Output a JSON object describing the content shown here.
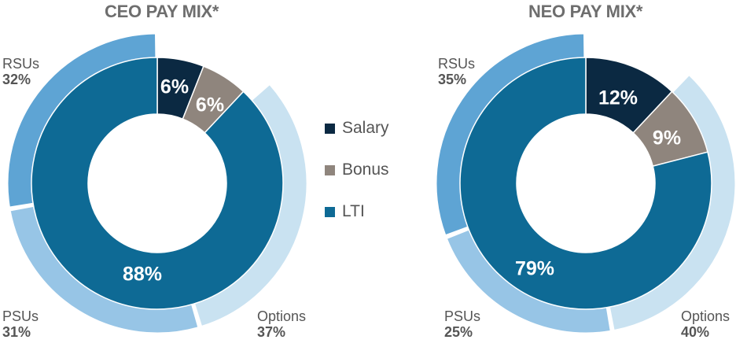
{
  "chart_data": [
    {
      "type": "pie",
      "title": "CEO PAY MIX*",
      "inner": [
        {
          "name": "Salary",
          "value": 6,
          "label": "6%"
        },
        {
          "name": "Bonus",
          "value": 6,
          "label": "6%"
        },
        {
          "name": "LTI",
          "value": 88,
          "label": "88%"
        }
      ],
      "outer": [
        {
          "name": "Options",
          "value": 37,
          "label": "37%"
        },
        {
          "name": "PSUs",
          "value": 31,
          "label": "31%"
        },
        {
          "name": "RSUs",
          "value": 32,
          "label": "32%"
        }
      ]
    },
    {
      "type": "pie",
      "title": "NEO PAY MIX*",
      "inner": [
        {
          "name": "Salary",
          "value": 12,
          "label": "12%"
        },
        {
          "name": "Bonus",
          "value": 9,
          "label": "9%"
        },
        {
          "name": "LTI",
          "value": 79,
          "label": "79%"
        }
      ],
      "outer": [
        {
          "name": "Options",
          "value": 40,
          "label": "40%"
        },
        {
          "name": "PSUs",
          "value": 25,
          "label": "25%"
        },
        {
          "name": "RSUs",
          "value": 35,
          "label": "35%"
        }
      ]
    }
  ],
  "legend": [
    {
      "name": "Salary",
      "color": "#0b2942"
    },
    {
      "name": "Bonus",
      "color": "#8f857d"
    },
    {
      "name": "LTI",
      "color": "#0e6a95"
    }
  ],
  "colors": {
    "Salary": "#0b2942",
    "Bonus": "#8f857d",
    "LTI": "#0e6a95",
    "Options": "#c9e2f1",
    "PSUs": "#97c5e6",
    "RSUs": "#5ea4d4"
  }
}
